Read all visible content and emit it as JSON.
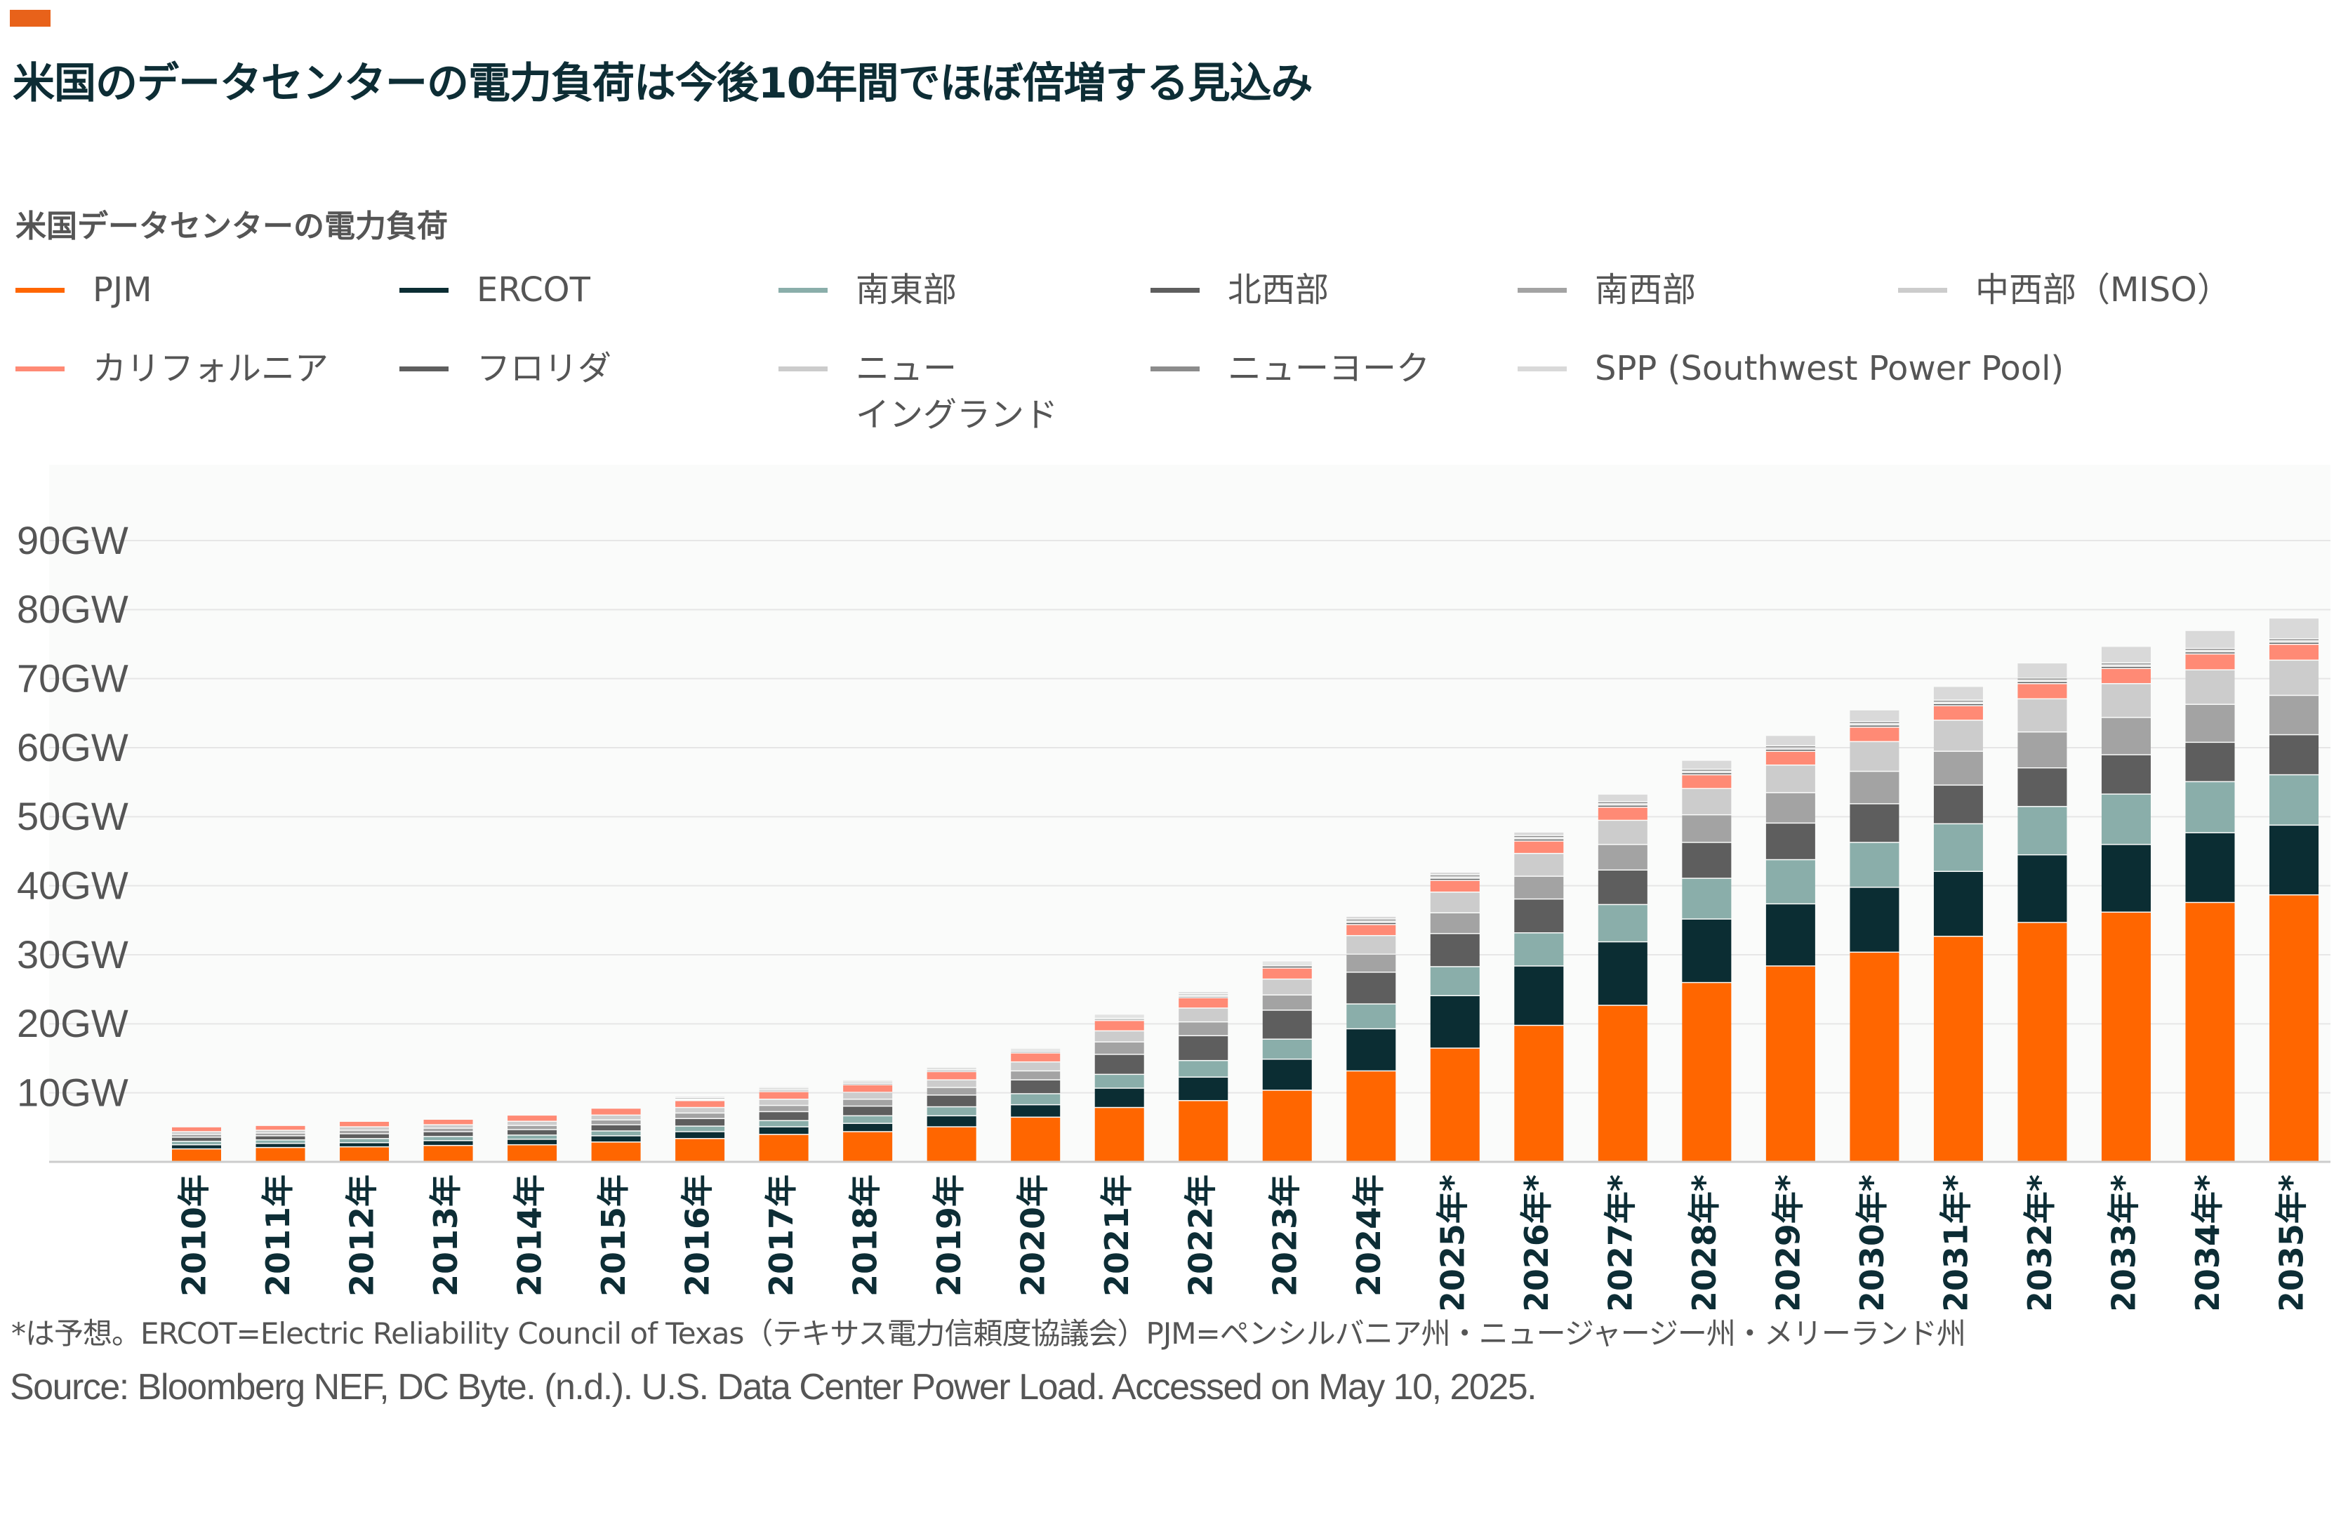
{
  "header": {
    "accent_color": "#e8621a",
    "title": "米国のデータセンターの電力負荷は今後10年間でほぼ倍増する見込み"
  },
  "chart_data": {
    "type": "bar",
    "stacked": true,
    "title": "米国データセンターの電力負荷",
    "xlabel": "",
    "ylabel": "",
    "ylim": [
      0,
      90
    ],
    "yticks": [
      "10GW",
      "20GW",
      "30GW",
      "40GW",
      "50GW",
      "60GW",
      "70GW",
      "80GW",
      "90GW"
    ],
    "grid": true,
    "legend_position": "top",
    "categories": [
      "2010年",
      "2011年",
      "2012年",
      "2013年",
      "2014年",
      "2015年",
      "2016年",
      "2017年",
      "2018年",
      "2019年",
      "2020年",
      "2021年",
      "2022年",
      "2023年",
      "2024年",
      "2025年*",
      "2026年*",
      "2027年*",
      "2028年*",
      "2029年*",
      "2030年*",
      "2031年*",
      "2032年*",
      "2033年*",
      "2034年*",
      "2035年*"
    ],
    "series": [
      {
        "name": "PJM",
        "color": "#ff6600",
        "values": [
          1.8,
          2.0,
          2.1,
          2.3,
          2.4,
          2.8,
          3.3,
          3.9,
          4.3,
          5.0,
          6.4,
          7.8,
          8.8,
          10.3,
          13.1,
          16.4,
          19.7,
          22.6,
          25.9,
          28.3,
          30.3,
          32.6,
          34.6,
          36.1,
          37.5,
          38.6
        ]
      },
      {
        "name": "ERCOT",
        "color": "#0b2d33",
        "values": [
          0.6,
          0.6,
          0.6,
          0.7,
          0.8,
          0.9,
          1.0,
          1.1,
          1.2,
          1.6,
          1.8,
          2.8,
          3.4,
          4.5,
          6.1,
          7.6,
          8.6,
          9.2,
          9.2,
          9.0,
          9.4,
          9.4,
          9.8,
          9.8,
          10.1,
          10.1
        ]
      },
      {
        "name": "南東部",
        "color": "#8aaeaa",
        "values": [
          0.5,
          0.5,
          0.6,
          0.6,
          0.6,
          0.7,
          0.8,
          0.9,
          1.1,
          1.3,
          1.6,
          2.0,
          2.4,
          2.9,
          3.6,
          4.2,
          4.8,
          5.4,
          5.9,
          6.4,
          6.5,
          6.9,
          7.0,
          7.3,
          7.4,
          7.3
        ]
      },
      {
        "name": "北西部",
        "color": "#5e5e5e",
        "values": [
          0.6,
          0.6,
          0.7,
          0.7,
          0.8,
          0.9,
          1.1,
          1.3,
          1.4,
          1.7,
          2.0,
          2.9,
          3.6,
          4.2,
          4.6,
          4.8,
          4.9,
          5.0,
          5.2,
          5.3,
          5.6,
          5.6,
          5.6,
          5.7,
          5.7,
          5.8
        ]
      },
      {
        "name": "南西部",
        "color": "#a3a3a3",
        "values": [
          0.4,
          0.4,
          0.5,
          0.5,
          0.6,
          0.7,
          0.8,
          0.9,
          1.0,
          1.1,
          1.3,
          1.8,
          2.0,
          2.2,
          2.6,
          3.0,
          3.3,
          3.7,
          4.0,
          4.4,
          4.7,
          4.9,
          5.2,
          5.4,
          5.5,
          5.7
        ]
      },
      {
        "name": "中西部（MISO）",
        "color": "#cccccc",
        "values": [
          0.4,
          0.4,
          0.5,
          0.5,
          0.6,
          0.7,
          0.8,
          0.9,
          1.0,
          1.1,
          1.3,
          1.6,
          2.0,
          2.3,
          2.7,
          3.0,
          3.3,
          3.5,
          3.8,
          4.0,
          4.3,
          4.5,
          4.8,
          4.9,
          5.0,
          5.1
        ]
      },
      {
        "name": "カリフォルニア",
        "color": "#ff8a75",
        "values": [
          0.7,
          0.7,
          0.8,
          0.8,
          0.9,
          1.0,
          1.0,
          1.1,
          1.1,
          1.2,
          1.3,
          1.5,
          1.5,
          1.6,
          1.6,
          1.7,
          1.8,
          1.9,
          2.0,
          2.0,
          2.1,
          2.1,
          2.2,
          2.2,
          2.3,
          2.3
        ]
      },
      {
        "name": "フロリダ",
        "color": "#5e5e5e",
        "values": [
          0.1,
          0.1,
          0.1,
          0.1,
          0.1,
          0.1,
          0.1,
          0.2,
          0.2,
          0.2,
          0.2,
          0.2,
          0.2,
          0.3,
          0.3,
          0.3,
          0.3,
          0.3,
          0.3,
          0.3,
          0.3,
          0.3,
          0.3,
          0.3,
          0.3,
          0.3
        ]
      },
      {
        "name": "ニュー\nイングランド",
        "color": "#cccccc",
        "values": [
          0.1,
          0.1,
          0.1,
          0.1,
          0.1,
          0.1,
          0.1,
          0.1,
          0.1,
          0.1,
          0.1,
          0.2,
          0.2,
          0.2,
          0.2,
          0.2,
          0.2,
          0.2,
          0.2,
          0.2,
          0.2,
          0.2,
          0.2,
          0.2,
          0.2,
          0.2
        ]
      },
      {
        "name": "ニューヨーク",
        "color": "#8c8c8c",
        "values": [
          0.1,
          0.1,
          0.1,
          0.1,
          0.1,
          0.1,
          0.2,
          0.2,
          0.2,
          0.2,
          0.2,
          0.2,
          0.2,
          0.2,
          0.3,
          0.3,
          0.3,
          0.3,
          0.3,
          0.3,
          0.3,
          0.3,
          0.3,
          0.3,
          0.3,
          0.3
        ]
      },
      {
        "name": "SPP (Southwest Power Pool)",
        "color": "#d9d9d9",
        "values": [
          0.1,
          0.1,
          0.1,
          0.1,
          0.1,
          0.1,
          0.2,
          0.2,
          0.2,
          0.2,
          0.2,
          0.3,
          0.3,
          0.3,
          0.4,
          0.4,
          0.5,
          1.1,
          1.3,
          1.5,
          1.7,
          2.0,
          2.2,
          2.4,
          2.6,
          3.0
        ]
      }
    ]
  },
  "legend_layout": [
    [
      "PJM",
      "ERCOT",
      "南東部",
      "北西部",
      "南西部",
      "中西部（MISO）"
    ],
    [
      "カリフォルニア",
      "フロリダ",
      "ニュー\nイングランド",
      "ニューヨーク",
      "SPP (Southwest Power Pool)"
    ]
  ],
  "footnote": "*は予想。ERCOT=Electric Reliability Council of Texas（テキサス電力信頼度協議会）PJM=ペンシルバニア州・ニュージャージー州・メリーランド州",
  "source": "Source: Bloomberg NEF, DC Byte. (n.d.). U.S. Data Center Power Load. Accessed on May 10, 2025."
}
